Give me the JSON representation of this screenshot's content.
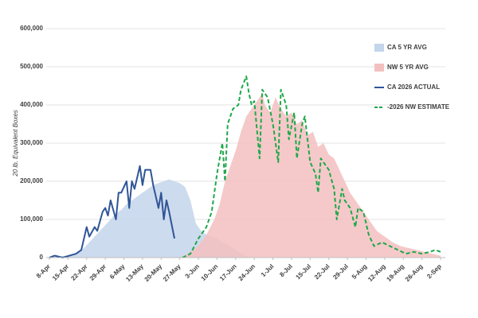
{
  "chart_data": {
    "type": "line",
    "y_label": "20 lb. Equivalent Boxes",
    "xlim": [
      0,
      147
    ],
    "xticks": [
      {
        "value": 0,
        "label": "8-Apr"
      },
      {
        "value": 7,
        "label": "15-Apr"
      },
      {
        "value": 14,
        "label": "22-Apr"
      },
      {
        "value": 21,
        "label": "29-Apr"
      },
      {
        "value": 28,
        "label": "6-May"
      },
      {
        "value": 35,
        "label": "13-May"
      },
      {
        "value": 42,
        "label": "20-May"
      },
      {
        "value": 49,
        "label": "27-May"
      },
      {
        "value": 56,
        "label": "3-Jun"
      },
      {
        "value": 63,
        "label": "10-Jun"
      },
      {
        "value": 70,
        "label": "17-Jun"
      },
      {
        "value": 77,
        "label": "24-Jun"
      },
      {
        "value": 84,
        "label": "1-Jul"
      },
      {
        "value": 91,
        "label": "8-Jul"
      },
      {
        "value": 98,
        "label": "15-Jul"
      },
      {
        "value": 105,
        "label": "22-Jul"
      },
      {
        "value": 112,
        "label": "29-Jul"
      },
      {
        "value": 119,
        "label": "5-Aug"
      },
      {
        "value": 126,
        "label": "12-Aug"
      },
      {
        "value": 133,
        "label": "19-Aug"
      },
      {
        "value": 140,
        "label": "26-Aug"
      },
      {
        "value": 147,
        "label": "2-Sep"
      }
    ],
    "ylim": [
      0,
      600000
    ],
    "yticks": [
      0,
      {
        "value": 100000,
        "label": "100,000"
      },
      {
        "value": 200000,
        "label": "200,000"
      },
      {
        "value": 300000,
        "label": "300,000"
      },
      {
        "value": 400000,
        "label": "400,000"
      },
      {
        "value": 500000,
        "label": "500,000"
      },
      {
        "value": 600000,
        "label": "600,000"
      }
    ],
    "grid": true,
    "legend": "upper right",
    "series": [
      {
        "name": "CA 5 YR AVG",
        "type": "area",
        "color": "#c3d5ea",
        "x": [
          0,
          3,
          7,
          10,
          13,
          15,
          17,
          19,
          21,
          23,
          25,
          27,
          29,
          31,
          33,
          35,
          37,
          39,
          41,
          43,
          45,
          47,
          49,
          51,
          53,
          55,
          57,
          59,
          61,
          63,
          65,
          67,
          69,
          71,
          73,
          75
        ],
        "values": [
          0,
          3000,
          5000,
          10000,
          25000,
          40000,
          55000,
          70000,
          85000,
          100000,
          115000,
          125000,
          140000,
          150000,
          160000,
          170000,
          180000,
          190000,
          195000,
          200000,
          205000,
          200000,
          195000,
          185000,
          150000,
          90000,
          70000,
          60000,
          55000,
          50000,
          40000,
          35000,
          25000,
          15000,
          8000,
          0
        ]
      },
      {
        "name": "NW 5 YR AVG",
        "type": "area",
        "color": "#f3c0c0",
        "x": [
          49,
          52,
          55,
          57,
          59,
          62,
          64,
          66,
          68,
          70,
          72,
          74,
          76,
          78,
          80,
          81,
          83,
          85,
          87,
          89,
          91,
          93,
          95,
          97,
          99,
          101,
          103,
          105,
          107,
          109,
          111,
          113,
          115,
          117,
          119,
          121,
          123,
          125,
          127,
          129,
          132,
          135,
          138,
          141,
          144,
          147
        ],
        "values": [
          0,
          10000,
          25000,
          40000,
          60000,
          100000,
          140000,
          200000,
          240000,
          280000,
          330000,
          370000,
          390000,
          410000,
          430000,
          400000,
          380000,
          420000,
          390000,
          370000,
          380000,
          350000,
          360000,
          320000,
          330000,
          290000,
          300000,
          270000,
          260000,
          230000,
          200000,
          170000,
          150000,
          130000,
          110000,
          90000,
          70000,
          60000,
          50000,
          40000,
          30000,
          25000,
          20000,
          15000,
          10000,
          5000
        ]
      },
      {
        "name": "CA 2026  ACTUAL",
        "type": "line",
        "color": "#2f5597",
        "x": [
          0,
          2,
          5,
          10,
          12,
          14,
          15,
          17,
          18,
          20,
          21,
          22,
          23,
          25,
          26,
          27,
          28,
          29,
          30,
          31,
          32,
          34,
          35,
          36,
          38,
          39,
          41,
          42,
          43,
          44,
          45,
          47
        ],
        "values": [
          0,
          5000,
          0,
          10000,
          20000,
          80000,
          55000,
          80000,
          70000,
          120000,
          130000,
          110000,
          150000,
          100000,
          170000,
          170000,
          185000,
          200000,
          130000,
          200000,
          180000,
          240000,
          190000,
          230000,
          230000,
          190000,
          130000,
          170000,
          100000,
          150000,
          120000,
          50000
        ]
      },
      {
        "name": "-2026 NW ESTIMATE",
        "type": "line",
        "line_style": "dashed",
        "color": "#1ea84a",
        "x": [
          50,
          53,
          56,
          59,
          61,
          63,
          65,
          66,
          67,
          69,
          71,
          72,
          74,
          75,
          76,
          77,
          79,
          80,
          82,
          84,
          86,
          87,
          89,
          90,
          92,
          93,
          95,
          96,
          98,
          100,
          101,
          102,
          105,
          107,
          108,
          110,
          111,
          113,
          115,
          116,
          118,
          120,
          122,
          125,
          128,
          131,
          134,
          137,
          140,
          143,
          145,
          147
        ],
        "values": [
          0,
          10000,
          50000,
          80000,
          120000,
          220000,
          300000,
          200000,
          350000,
          390000,
          400000,
          440000,
          475000,
          430000,
          400000,
          410000,
          260000,
          440000,
          420000,
          350000,
          250000,
          440000,
          400000,
          310000,
          380000,
          260000,
          350000,
          370000,
          250000,
          220000,
          170000,
          260000,
          230000,
          180000,
          100000,
          180000,
          150000,
          130000,
          80000,
          130000,
          120000,
          60000,
          30000,
          40000,
          30000,
          20000,
          10000,
          15000,
          10000,
          15000,
          20000,
          15000
        ]
      }
    ]
  }
}
